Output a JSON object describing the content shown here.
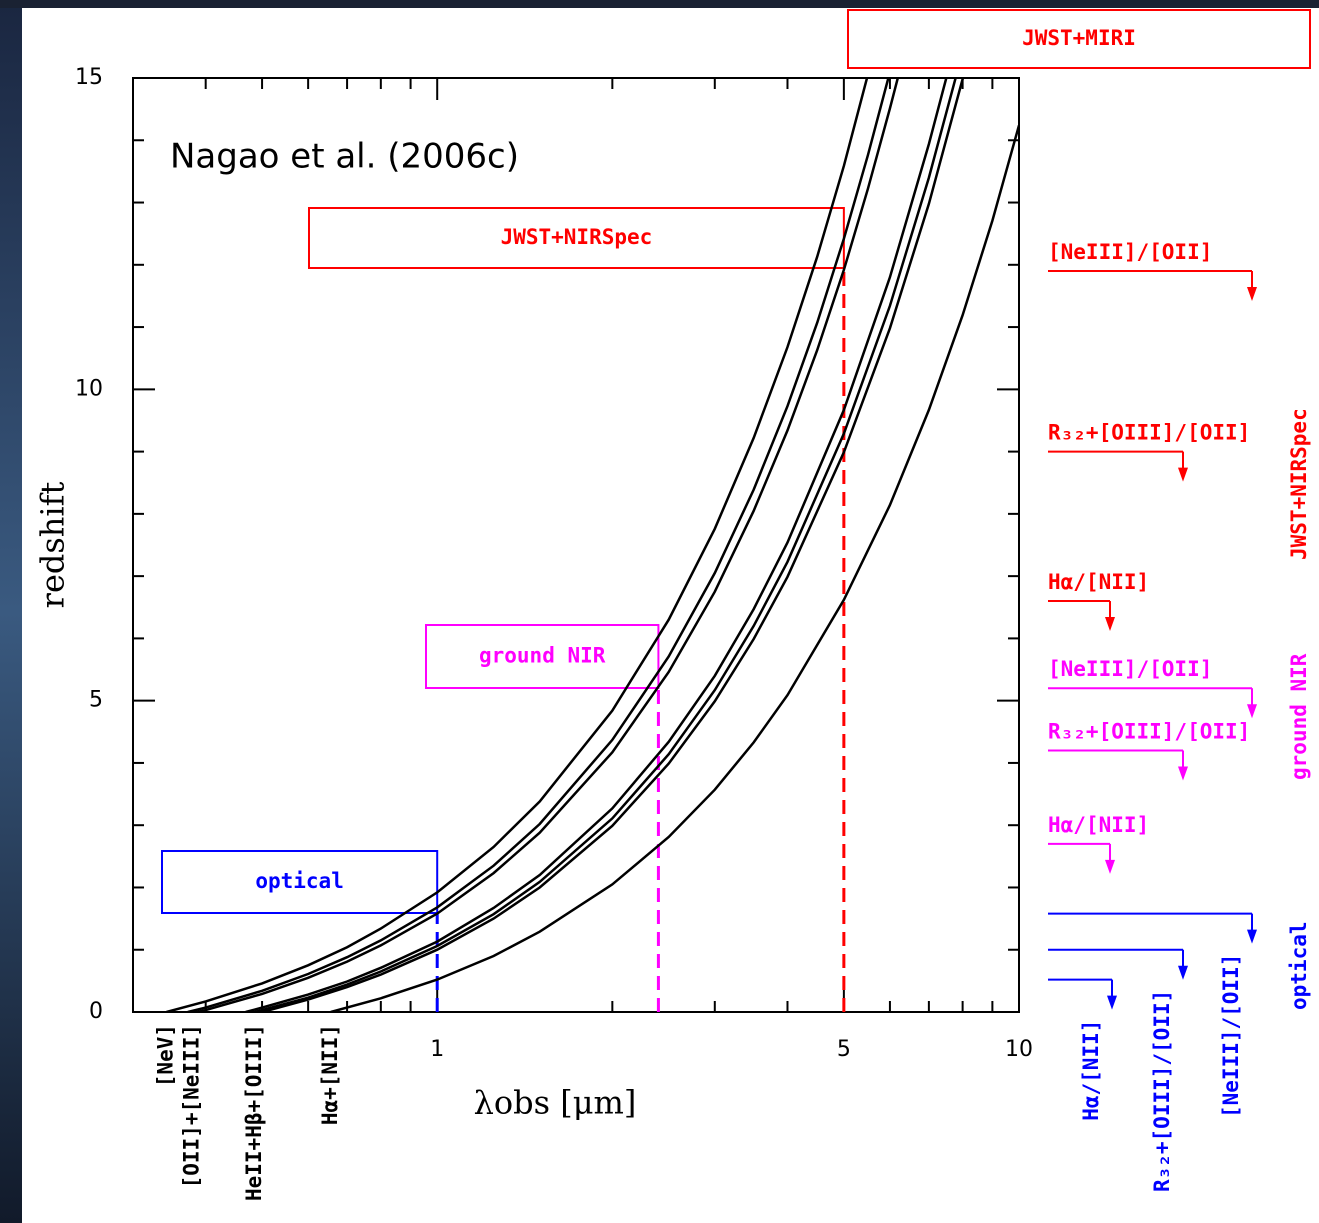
{
  "chart_data": {
    "type": "line",
    "title": "Nagao et al. (2006c)",
    "xlabel": "λobs [μm]",
    "ylabel": "redshift",
    "xscale": "log",
    "xlim": [
      0.3,
      10
    ],
    "ylim": [
      0,
      15
    ],
    "xticks": [
      1,
      5,
      10
    ],
    "xticks_minor": [
      0.4,
      0.5,
      0.6,
      0.7,
      0.8,
      0.9,
      2,
      3,
      4,
      6,
      7,
      8,
      9
    ],
    "yticks": [
      0,
      5,
      10,
      15
    ],
    "yticks_minor": [
      1,
      2,
      3,
      4,
      6,
      7,
      8,
      9,
      11,
      12,
      13,
      14
    ],
    "line_color": "#000000",
    "series": [
      {
        "x": [
          0.3426,
          0.4,
          0.5,
          0.6,
          0.7,
          0.8,
          1,
          1.25,
          1.5,
          2,
          2.5,
          3,
          3.5,
          4,
          4.5,
          5,
          5.48
        ],
        "values": [
          0,
          0.17,
          0.46,
          0.75,
          1.04,
          1.34,
          1.92,
          2.65,
          3.38,
          4.84,
          6.3,
          7.76,
          9.22,
          10.68,
          12.13,
          13.59,
          15
        ]
      },
      {
        "x": [
          0.3727,
          0.4,
          0.5,
          0.6,
          0.7,
          0.8,
          1,
          1.25,
          1.5,
          2,
          2.5,
          3,
          3.5,
          4,
          4.5,
          5,
          5.5,
          5.96
        ],
        "values": [
          0,
          0.07,
          0.34,
          0.61,
          0.88,
          1.15,
          1.68,
          2.35,
          3.02,
          4.37,
          5.71,
          7.05,
          8.39,
          9.73,
          11.07,
          12.42,
          13.76,
          14.99
        ]
      },
      {
        "x": [
          0.3869,
          0.4,
          0.5,
          0.6,
          0.7,
          0.8,
          1,
          1.25,
          1.5,
          2,
          2.5,
          3,
          3.5,
          4,
          4.5,
          5,
          5.5,
          6,
          6.19
        ],
        "values": [
          0,
          0.03,
          0.29,
          0.55,
          0.81,
          1.07,
          1.58,
          2.23,
          2.88,
          4.17,
          5.46,
          6.75,
          8.05,
          9.34,
          10.63,
          11.92,
          13.22,
          14.51,
          15
        ]
      },
      {
        "x": [
          0.4686,
          0.5,
          0.6,
          0.7,
          0.8,
          1,
          1.25,
          1.5,
          2,
          2.5,
          3,
          3.5,
          4,
          5,
          6,
          7,
          7.5
        ],
        "values": [
          0,
          0.07,
          0.28,
          0.49,
          0.71,
          1.13,
          1.67,
          2.2,
          3.27,
          4.34,
          5.4,
          6.47,
          7.54,
          9.67,
          11.8,
          13.94,
          15
        ]
      },
      {
        "x": [
          0.4861,
          0.6,
          0.7,
          0.8,
          1,
          1.25,
          1.5,
          2,
          2.5,
          3,
          3.5,
          4,
          5,
          6,
          7,
          7.78
        ],
        "values": [
          0,
          0.23,
          0.44,
          0.65,
          1.06,
          1.57,
          2.09,
          3.11,
          4.14,
          5.17,
          6.2,
          7.23,
          9.29,
          11.34,
          13.4,
          15
        ]
      },
      {
        "x": [
          0.5007,
          0.6,
          0.7,
          0.8,
          1,
          1.25,
          1.5,
          2,
          2.5,
          3,
          3.5,
          4,
          5,
          6,
          7,
          8.01
        ],
        "values": [
          0,
          0.2,
          0.4,
          0.6,
          1,
          1.5,
          2,
          2.99,
          3.99,
          4.99,
          5.99,
          6.99,
          8.99,
          10.98,
          12.98,
          15
        ]
      },
      {
        "x": [
          0.6563,
          0.8,
          1,
          1.25,
          1.5,
          2,
          2.5,
          3,
          3.5,
          4,
          5,
          6,
          7,
          8,
          9,
          10
        ],
        "values": [
          0,
          0.22,
          0.52,
          0.9,
          1.29,
          2.05,
          2.81,
          3.57,
          4.33,
          5.09,
          6.62,
          8.14,
          9.67,
          11.19,
          12.71,
          14.24
        ]
      }
    ],
    "line_labels": [
      {
        "value": 0.3426,
        "label": "[NeV]"
      },
      {
        "value": 0.38,
        "label": "[OII]+[NeIII]"
      },
      {
        "value": 0.486,
        "label": "HeII+Hβ+[OIII]"
      },
      {
        "value": 0.657,
        "label": "Hα+[NII]"
      }
    ],
    "instruments": [
      {
        "label": "optical",
        "color": "#0000ff",
        "limit": 1,
        "diagnostics": [
          {
            "label": "[NeIII]/[OII]",
            "z": 1.58
          },
          {
            "label": "R₃₂+[OIII]/[OII]",
            "z": 1
          },
          {
            "label": "Hα/[NII]",
            "z": 0.52
          }
        ]
      },
      {
        "label": "ground NIR",
        "color": "#ff00ff",
        "limit": 2.4,
        "diagnostics": [
          {
            "label": "[NeIII]/[OII]",
            "z": 5.2
          },
          {
            "label": "R₃₂+[OIII]/[OII]",
            "z": 4.2
          },
          {
            "label": "Hα/[NII]",
            "z": 2.7
          }
        ]
      },
      {
        "label": "JWST+NIRSpec",
        "color": "#ff0000",
        "limit": 5,
        "diagnostics": [
          {
            "label": "[NeIII]/[OII]",
            "z": 11.9
          },
          {
            "label": "R₃₂+[OIII]/[OII]",
            "z": 9
          },
          {
            "label": "Hα/[NII]",
            "z": 6.6
          }
        ]
      },
      {
        "label": "JWST+MIRI",
        "color": "#ff0000"
      }
    ]
  }
}
